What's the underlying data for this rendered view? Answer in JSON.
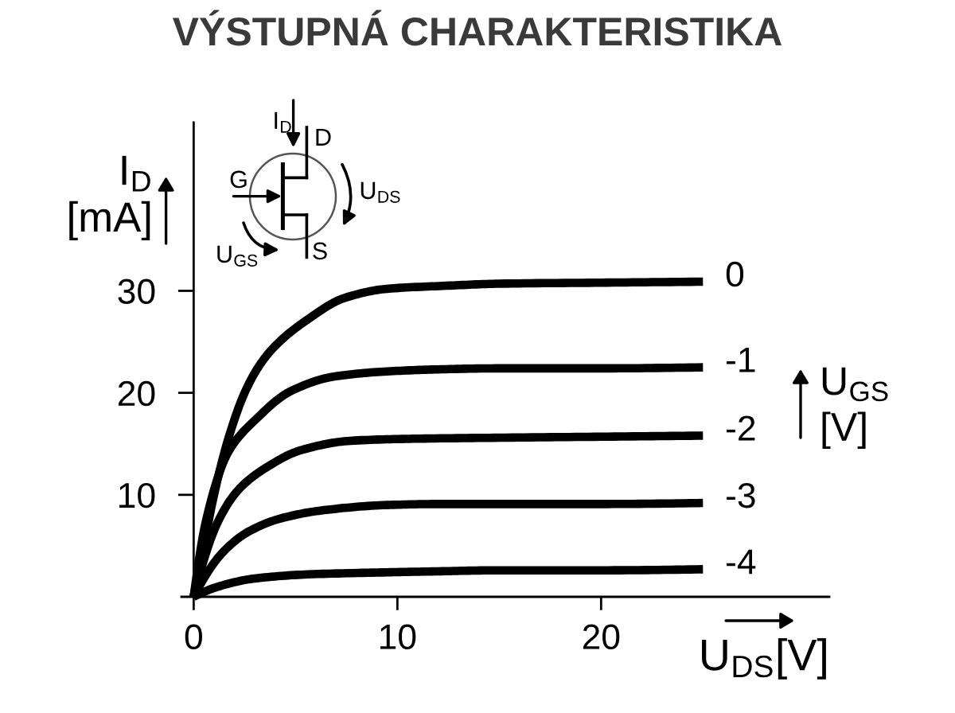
{
  "chart_data": {
    "type": "line",
    "title": "VÝSTUPNÁ CHARAKTERISTIKA",
    "xlabel": "U$_{DS}$[V]",
    "ylabel": "I$_{D}$ [mA]",
    "legend_title": "U$_{GS}$ [V]",
    "legend": "right",
    "annotations": [
      "I$_{D}$",
      "D",
      "G",
      "U$_{DS}$",
      "U$_{GS}$",
      "S"
    ],
    "xlim": [
      -0.6,
      31.2
    ],
    "ylim": [
      0,
      46.5
    ],
    "xticks": [
      0,
      10,
      20
    ],
    "yticks": [
      10,
      20,
      30
    ],
    "grid": false,
    "marker": "none",
    "line_style": "solid",
    "series": [
      {
        "name": "0",
        "color": "#000000",
        "x": [
          0,
          0.5,
          1.0,
          1.7,
          2.5,
          3.2,
          4.0,
          5.6,
          7.4,
          9.5,
          12.4,
          15,
          20,
          25
        ],
        "values": [
          0,
          5.0,
          10.0,
          15.5,
          20.0,
          22.6,
          24.6,
          27.2,
          29.3,
          30.2,
          30.5,
          30.7,
          30.8,
          30.9
        ]
      },
      {
        "name": "-1",
        "color": "#000000",
        "x": [
          0,
          0.6,
          1.7,
          3.0,
          4.8,
          6.9,
          9.5,
          12,
          15,
          20,
          25
        ],
        "values": [
          0,
          7.4,
          14.2,
          17.3,
          20.2,
          21.6,
          22.1,
          22.3,
          22.4,
          22.4,
          22.5
        ]
      },
      {
        "name": "-2",
        "color": "#000000",
        "x": [
          0,
          1.2,
          2.2,
          3.5,
          5.3,
          7.7,
          10.8,
          15,
          20,
          25
        ],
        "values": [
          0,
          7.4,
          10.5,
          12.6,
          14.4,
          15.3,
          15.5,
          15.6,
          15.7,
          15.8
        ]
      },
      {
        "name": "-3",
        "color": "#000000",
        "x": [
          0,
          1.4,
          2.7,
          4.3,
          6.4,
          9.5,
          12,
          15,
          20,
          25
        ],
        "values": [
          0,
          4.3,
          6.4,
          7.7,
          8.5,
          9.0,
          9.1,
          9.1,
          9.1,
          9.2
        ]
      },
      {
        "name": "-4",
        "color": "#000000",
        "x": [
          0,
          1.2,
          3.0,
          5.6,
          9.5,
          12,
          15,
          20,
          25
        ],
        "values": [
          0,
          1.0,
          1.8,
          2.2,
          2.4,
          2.5,
          2.6,
          2.6,
          2.7
        ]
      }
    ]
  }
}
